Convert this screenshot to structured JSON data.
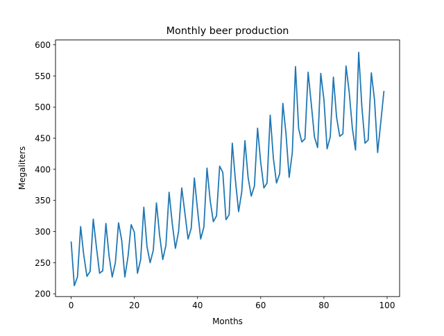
{
  "chart_data": {
    "type": "line",
    "title": "Monthly beer production",
    "xlabel": "Months",
    "ylabel": "Megaliters",
    "xlim": [
      -4.95,
      103.95
    ],
    "ylim": [
      195.5,
      607.8
    ],
    "xticks": [
      0,
      20,
      40,
      60,
      80,
      100
    ],
    "yticks": [
      200,
      250,
      300,
      350,
      400,
      450,
      500,
      550,
      600
    ],
    "grid": false,
    "color": "#1f77b4",
    "x_start": 0,
    "values": [
      284,
      213,
      227,
      308,
      262,
      228,
      236,
      320,
      275,
      233,
      237,
      313,
      261,
      227,
      250,
      314,
      286,
      227,
      260,
      311,
      299,
      233,
      255,
      339,
      276,
      250,
      270,
      346,
      294,
      255,
      278,
      363,
      313,
      273,
      300,
      370,
      330,
      288,
      305,
      386,
      335,
      288,
      307,
      402,
      350,
      316,
      325,
      405,
      395,
      319,
      327,
      442,
      382,
      332,
      364,
      446,
      387,
      357,
      373,
      466,
      411,
      370,
      378,
      487,
      418,
      378,
      393,
      506,
      457,
      387,
      427,
      565,
      465,
      444,
      449,
      556,
      505,
      452,
      435,
      554,
      512,
      433,
      452,
      548,
      484,
      453,
      457,
      566,
      524,
      466,
      431,
      588,
      501,
      442,
      447,
      555,
      512,
      427,
      476,
      526
    ]
  }
}
